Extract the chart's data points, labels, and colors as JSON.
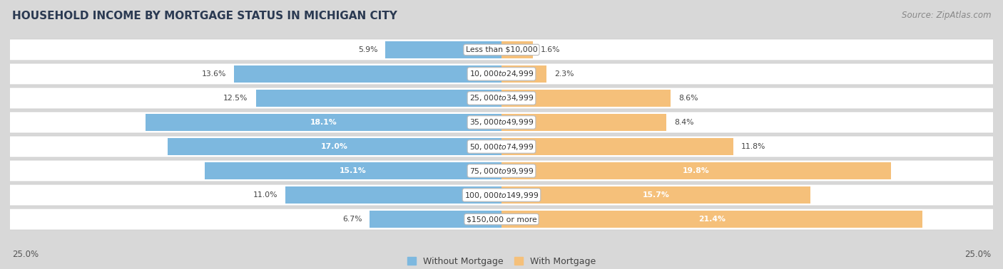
{
  "title": "HOUSEHOLD INCOME BY MORTGAGE STATUS IN MICHIGAN CITY",
  "source": "Source: ZipAtlas.com",
  "categories": [
    "Less than $10,000",
    "$10,000 to $24,999",
    "$25,000 to $34,999",
    "$35,000 to $49,999",
    "$50,000 to $74,999",
    "$75,000 to $99,999",
    "$100,000 to $149,999",
    "$150,000 or more"
  ],
  "without_mortgage": [
    5.9,
    13.6,
    12.5,
    18.1,
    17.0,
    15.1,
    11.0,
    6.7
  ],
  "with_mortgage": [
    1.6,
    2.3,
    8.6,
    8.4,
    11.8,
    19.8,
    15.7,
    21.4
  ],
  "color_without": "#7db8df",
  "color_with": "#f5c07a",
  "bg_outer": "#d8d8d8",
  "bg_row_even": "#f2f2f2",
  "bg_row_odd": "#e8e8e8",
  "row_border": "#cccccc",
  "axis_limit": 25.0,
  "legend_labels": [
    "Without Mortgage",
    "With Mortgage"
  ],
  "axis_label_left": "25.0%",
  "axis_label_right": "25.0%",
  "white_text_threshold": 14.0
}
